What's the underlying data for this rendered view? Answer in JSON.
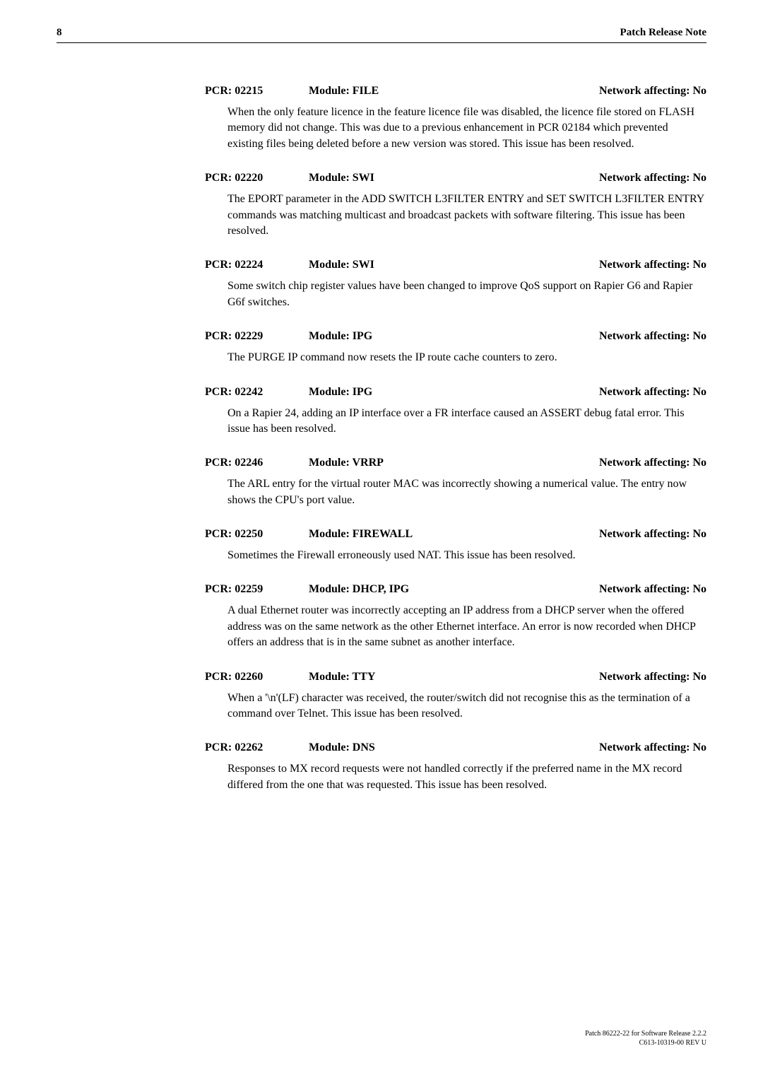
{
  "page": {
    "number": "8",
    "headerTitle": "Patch Release Note"
  },
  "entries": [
    {
      "pcr": "PCR: 02215",
      "module": "Module: FILE",
      "affecting": "Network affecting: No",
      "body": "When the only feature licence in the feature licence file was disabled, the licence file stored on FLASH memory did not change. This was due to a previous enhancement in PCR 02184 which prevented existing files being deleted before a new version was stored. This issue has been resolved."
    },
    {
      "pcr": "PCR: 02220",
      "module": "Module: SWI",
      "affecting": "Network affecting: No",
      "body": "The EPORT parameter in the ADD SWITCH L3FILTER ENTRY and SET SWITCH L3FILTER ENTRY commands was matching multicast and broadcast packets with software filtering. This issue has been resolved."
    },
    {
      "pcr": "PCR: 02224",
      "module": "Module: SWI",
      "affecting": "Network affecting: No",
      "body": "Some switch chip register values have been changed to improve QoS support on Rapier G6 and Rapier G6f switches."
    },
    {
      "pcr": "PCR: 02229",
      "module": "Module: IPG",
      "affecting": "Network affecting: No",
      "body": "The PURGE IP command now resets the IP route cache counters to zero."
    },
    {
      "pcr": "PCR: 02242",
      "module": "Module: IPG",
      "affecting": "Network affecting: No",
      "body": "On a Rapier 24, adding an IP interface over a FR interface caused an ASSERT debug fatal error. This issue has been resolved."
    },
    {
      "pcr": "PCR: 02246",
      "module": "Module: VRRP",
      "affecting": "Network affecting: No",
      "body": "The ARL entry for the virtual router MAC was incorrectly showing a numerical value. The entry now shows the CPU's port value."
    },
    {
      "pcr": "PCR: 02250",
      "module": "Module: FIREWALL",
      "affecting": "Network affecting: No",
      "body": "Sometimes the Firewall erroneously used NAT. This issue has been resolved."
    },
    {
      "pcr": "PCR: 02259",
      "module": "Module: DHCP, IPG",
      "affecting": "Network affecting: No",
      "body": "A dual Ethernet router was incorrectly accepting an IP address from a DHCP server when the offered address was on the same network as the other Ethernet interface. An error is now recorded when DHCP offers an address that is in the same subnet as another interface."
    },
    {
      "pcr": "PCR: 02260",
      "module": "Module: TTY",
      "affecting": "Network affecting: No",
      "body": "When a '\\n'(LF) character was received, the router/switch did not recognise this as the termination of a command over Telnet. This issue has been resolved."
    },
    {
      "pcr": "PCR: 02262",
      "module": "Module: DNS",
      "affecting": "Network affecting: No",
      "body": "Responses to MX record requests were not handled correctly if the preferred name in the MX record differed from the one that was requested. This issue has been resolved."
    }
  ],
  "footer": {
    "line1": "Patch 86222-22 for Software Release 2.2.2",
    "line2": "C613-10319-00 REV U"
  }
}
